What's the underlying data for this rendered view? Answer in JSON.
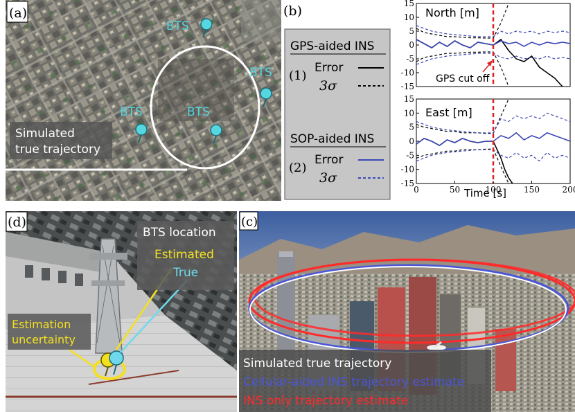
{
  "panel_a": {
    "tag": "(a)",
    "bts_label": "BTS",
    "trajectory_label_line1": "Simulated",
    "trajectory_label_line2": "true trajectory",
    "colors": {
      "pin": "#55d6e0",
      "circle": "#ffffff"
    }
  },
  "panel_b": {
    "tag": "(b)",
    "gps_heading": "GPS-aided INS",
    "sop_heading": "SOP-aided INS",
    "legend1_number": "(1)",
    "legend2_number": "(2)",
    "error_label": "Error",
    "sigma_label": "3σ",
    "gps_cutoff": "GPS cut off",
    "north_title": "North [m]",
    "east_title": "East [m]",
    "xlabel": "Time [s]",
    "colors": {
      "gps": "#000000",
      "sop": "#3b48b5",
      "cutoff": "#e02020"
    }
  },
  "chart_data": [
    {
      "type": "line",
      "title": "North [m]",
      "xlim": [
        0,
        200
      ],
      "ylim": [
        -15,
        15
      ],
      "yticks": [
        15,
        10,
        5,
        0,
        -5,
        -10,
        -15
      ],
      "gps_cutoff_x": 100,
      "series": [
        {
          "x": [
            0,
            10,
            20,
            30,
            40,
            50,
            60,
            70,
            80,
            90,
            100,
            110,
            120,
            130,
            140,
            150,
            160,
            170,
            180,
            190
          ],
          "y": [
            2,
            0.5,
            -1,
            1,
            -0.5,
            1.5,
            0,
            -1,
            1,
            0.5,
            0,
            2,
            -2,
            -5,
            -6,
            -4,
            -8,
            -10,
            -12,
            -15
          ]
        },
        {
          "x": [
            0,
            10,
            20,
            30,
            40,
            50,
            60,
            70,
            80,
            90,
            100,
            110,
            120
          ],
          "y": [
            6,
            4.5,
            4,
            3.5,
            3,
            3,
            2.8,
            2.6,
            2.6,
            2.5,
            2.5,
            8,
            15
          ]
        },
        {
          "x": [
            0,
            10,
            20,
            30,
            40,
            50,
            60,
            70,
            80,
            90,
            100,
            110,
            120
          ],
          "y": [
            -6,
            -4.5,
            -4,
            -3.5,
            -3,
            -3,
            -2.8,
            -2.6,
            -2.6,
            -2.5,
            -2.5,
            -8,
            -15
          ]
        },
        {
          "x": [
            0,
            10,
            20,
            30,
            40,
            50,
            60,
            70,
            80,
            90,
            100,
            110,
            120,
            130,
            140,
            150,
            160,
            170,
            180,
            190,
            200
          ],
          "y": [
            2,
            0.5,
            -1,
            1,
            -0.5,
            1.5,
            0,
            -1,
            1,
            0.5,
            0,
            1.5,
            0.5,
            1,
            -0.5,
            1,
            0,
            1,
            0.5,
            1,
            0.5
          ]
        },
        {
          "x": [
            0,
            20,
            40,
            60,
            80,
            100,
            110,
            120,
            130,
            140,
            150,
            160,
            170,
            180,
            190,
            200
          ],
          "y": [
            7,
            5,
            4,
            3.5,
            3,
            3,
            5,
            4,
            5,
            4.5,
            5,
            4,
            5,
            4.5,
            5,
            4.5
          ]
        },
        {
          "x": [
            0,
            20,
            40,
            60,
            80,
            100,
            110,
            120,
            130,
            140,
            150,
            160,
            170,
            180,
            190,
            200
          ],
          "y": [
            -7,
            -5,
            -4,
            -3.5,
            -3,
            -3,
            -4.5,
            -5,
            -4,
            -5,
            -4.5,
            -5,
            -4,
            -5,
            -4.5,
            -5
          ]
        }
      ]
    },
    {
      "type": "line",
      "title": "East [m]",
      "xlim": [
        0,
        200
      ],
      "ylim": [
        -15,
        15
      ],
      "yticks": [
        15,
        10,
        5,
        0,
        -5,
        -10,
        -15
      ],
      "xticks": [
        0,
        50,
        100,
        150,
        200
      ],
      "gps_cutoff_x": 100,
      "series": [
        {
          "x": [
            0,
            10,
            20,
            30,
            40,
            50,
            60,
            70,
            80,
            90,
            100,
            105,
            110,
            115,
            120,
            125
          ],
          "y": [
            -1,
            1,
            0,
            -1.5,
            0.5,
            -0.5,
            1,
            0,
            -0.5,
            0,
            0,
            -3,
            -6,
            -10,
            -13,
            -15
          ]
        },
        {
          "x": [
            0,
            10,
            20,
            30,
            40,
            50,
            60,
            70,
            80,
            90,
            100,
            110,
            120
          ],
          "y": [
            6,
            5,
            4.5,
            4,
            3.5,
            3.5,
            3,
            3,
            3,
            2.8,
            2.8,
            9,
            15
          ]
        },
        {
          "x": [
            0,
            10,
            20,
            30,
            40,
            50,
            60,
            70,
            80,
            90,
            100,
            110,
            120
          ],
          "y": [
            -6,
            -5,
            -4.5,
            -4,
            -3.5,
            -3.5,
            -3,
            -3,
            -3,
            -2.8,
            -2.8,
            -9,
            -15
          ]
        },
        {
          "x": [
            0,
            10,
            20,
            30,
            40,
            50,
            60,
            70,
            80,
            90,
            100,
            110,
            120,
            130,
            140,
            150,
            160,
            170,
            180,
            190,
            200
          ],
          "y": [
            -1,
            1,
            0,
            -1.5,
            0.5,
            -0.5,
            1,
            0,
            -0.5,
            0,
            0,
            2,
            1,
            3,
            0.5,
            2,
            1,
            3,
            2,
            1,
            0
          ]
        },
        {
          "x": [
            0,
            20,
            40,
            60,
            80,
            100,
            110,
            120,
            130,
            140,
            150,
            160,
            170,
            180,
            190,
            200
          ],
          "y": [
            7,
            5,
            4,
            3.5,
            3,
            3,
            8,
            7,
            9,
            8,
            9,
            8,
            10,
            9,
            8,
            7
          ]
        },
        {
          "x": [
            0,
            20,
            40,
            60,
            80,
            100,
            110,
            120,
            130,
            140,
            150,
            160,
            170,
            180,
            190,
            200
          ],
          "y": [
            -7,
            -5,
            -4,
            -3.5,
            -3,
            -3,
            -5,
            -6,
            -4,
            -6,
            -5,
            -7,
            -4,
            -6,
            -5,
            -6
          ]
        }
      ]
    }
  ],
  "panel_d": {
    "tag": "(d)",
    "bts_location": "BTS location",
    "estimated": "Estimated",
    "true": "True",
    "uncertainty_line1": "Estimation",
    "uncertainty_line2": "uncertainty",
    "colors": {
      "estimated": "#f5e020",
      "true": "#6fd8ec"
    }
  },
  "panel_c": {
    "tag": "(c)",
    "legend_white": "Simulated true trajectory",
    "legend_blue": "Cellular-aided INS trajectory estimate",
    "legend_red": "INS only trajectory estimate",
    "colors": {
      "white": "#ffffff",
      "blue": "#4a56d8",
      "red": "#ff2a2a"
    }
  }
}
